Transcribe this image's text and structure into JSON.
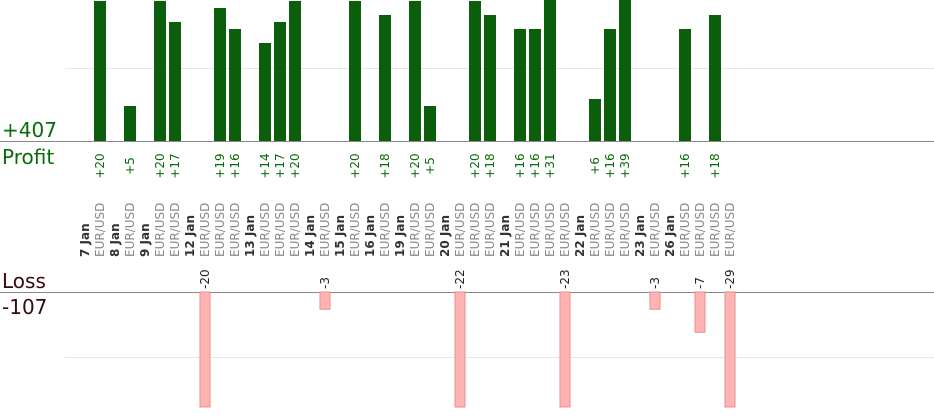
{
  "summary": {
    "profit_total": "+407",
    "profit_label": "Profit",
    "loss_label": "Loss",
    "loss_total": "-107"
  },
  "colors": {
    "profit_bar": "#0b5e0b",
    "profit_text": "#0a6b0a",
    "loss_bar": "#ffb3b3",
    "loss_bar_stroke": "#e88c8c",
    "loss_text": "#3a0a0a",
    "date_text": "#333333",
    "pair_text": "#8a8a8a",
    "axis": "#888888",
    "grid": "#e6e6e6"
  },
  "chart_data": {
    "type": "bar",
    "groups": [
      {
        "date": "7 Jan",
        "trades": [
          {
            "pair": "EUR/USD",
            "value": 20,
            "label": "+20"
          }
        ]
      },
      {
        "date": "8 Jan",
        "trades": [
          {
            "pair": "EUR/USD",
            "value": 5,
            "label": "+5"
          }
        ]
      },
      {
        "date": "9 Jan",
        "trades": [
          {
            "pair": "EUR/USD",
            "value": 20,
            "label": "+20"
          },
          {
            "pair": "EUR/USD",
            "value": 17,
            "label": "+17"
          }
        ]
      },
      {
        "date": "12 Jan",
        "trades": [
          {
            "pair": "EUR/USD",
            "value": -20,
            "label": "-20"
          },
          {
            "pair": "EUR/USD",
            "value": 19,
            "label": "+19"
          },
          {
            "pair": "EUR/USD",
            "value": 16,
            "label": "+16"
          }
        ]
      },
      {
        "date": "13 Jan",
        "trades": [
          {
            "pair": "EUR/USD",
            "value": 14,
            "label": "+14"
          },
          {
            "pair": "EUR/USD",
            "value": 17,
            "label": "+17"
          },
          {
            "pair": "EUR/USD",
            "value": 20,
            "label": "+20"
          }
        ]
      },
      {
        "date": "14 Jan",
        "trades": [
          {
            "pair": "EUR/USD",
            "value": -3,
            "label": "-3"
          }
        ]
      },
      {
        "date": "15 Jan",
        "trades": [
          {
            "pair": "EUR/USD",
            "value": 20,
            "label": "+20"
          }
        ]
      },
      {
        "date": "16 Jan",
        "trades": [
          {
            "pair": "EUR/USD",
            "value": 18,
            "label": "+18"
          }
        ]
      },
      {
        "date": "19 Jan",
        "trades": [
          {
            "pair": "EUR/USD",
            "value": 20,
            "label": "+20"
          },
          {
            "pair": "EUR/USD",
            "value": 5,
            "label": "+5"
          }
        ]
      },
      {
        "date": "20 Jan",
        "trades": [
          {
            "pair": "EUR/USD",
            "value": -22,
            "label": "-22"
          },
          {
            "pair": "EUR/USD",
            "value": 20,
            "label": "+20"
          },
          {
            "pair": "EUR/USD",
            "value": 18,
            "label": "+18"
          }
        ]
      },
      {
        "date": "21 Jan",
        "trades": [
          {
            "pair": "EUR/USD",
            "value": 16,
            "label": "+16"
          },
          {
            "pair": "EUR/USD",
            "value": 16,
            "label": "+16"
          },
          {
            "pair": "EUR/USD",
            "value": 31,
            "label": "+31"
          },
          {
            "pair": "EUR/USD",
            "value": -23,
            "label": "-23"
          }
        ]
      },
      {
        "date": "22 Jan",
        "trades": [
          {
            "pair": "EUR/USD",
            "value": 6,
            "label": "+6"
          },
          {
            "pair": "EUR/USD",
            "value": 16,
            "label": "+16"
          },
          {
            "pair": "EUR/USD",
            "value": 39,
            "label": "+39"
          }
        ]
      },
      {
        "date": "23 Jan",
        "trades": [
          {
            "pair": "EUR/USD",
            "value": -3,
            "label": "-3"
          }
        ]
      },
      {
        "date": "26 Jan",
        "trades": [
          {
            "pair": "EUR/USD",
            "value": 16,
            "label": "+16"
          },
          {
            "pair": "EUR/USD",
            "value": -7,
            "label": "-7"
          },
          {
            "pair": "EUR/USD",
            "value": 18,
            "label": "+18"
          },
          {
            "pair": "EUR/USD",
            "value": -29,
            "label": "-29"
          }
        ]
      }
    ],
    "profit_axis_visible_max": 20,
    "loss_axis_visible_max": 20,
    "gridlines": true
  }
}
